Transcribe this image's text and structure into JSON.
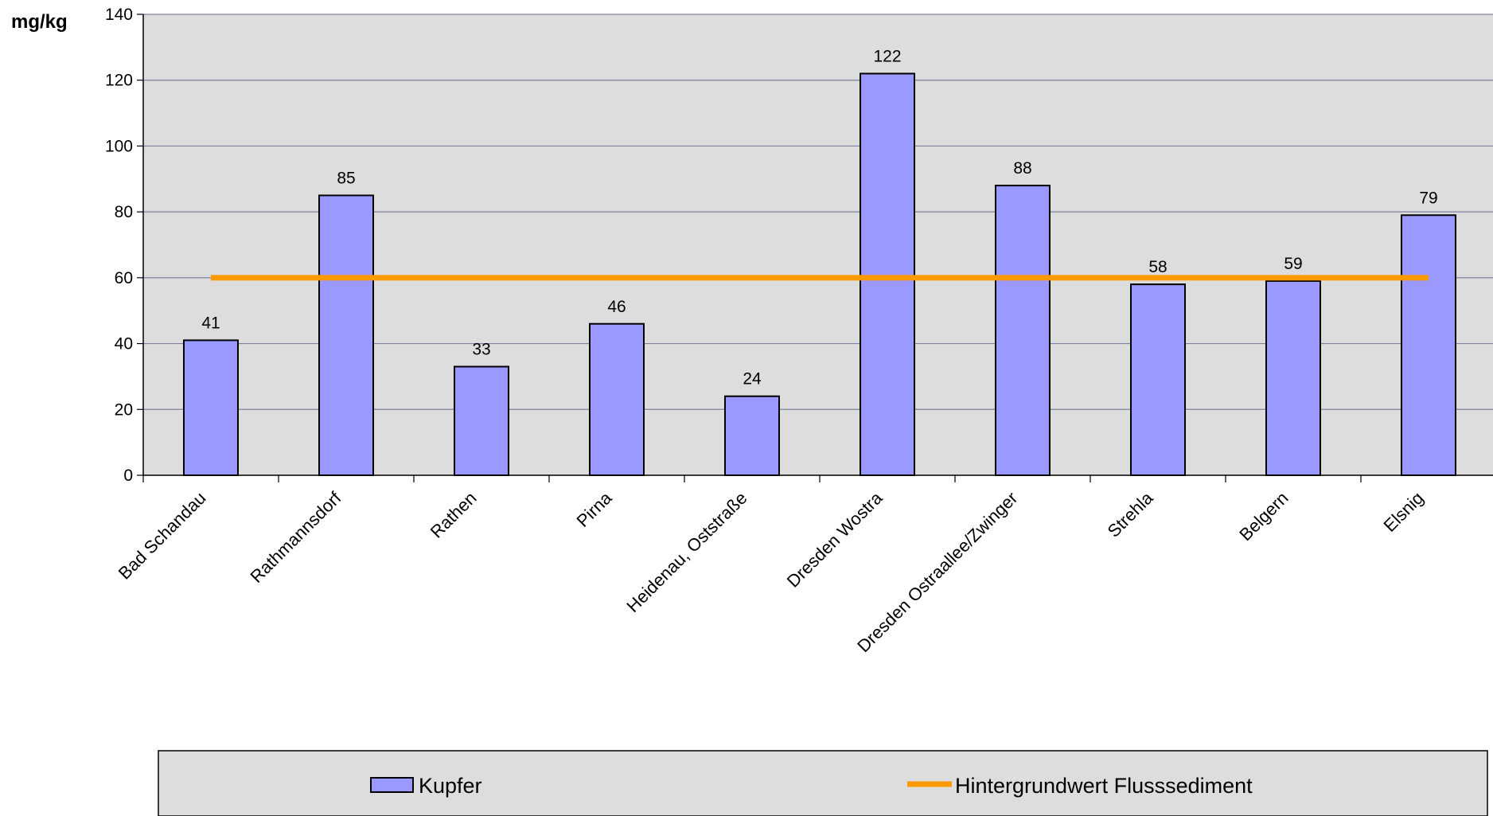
{
  "chart_data": {
    "type": "bar",
    "ylabel": "mg/kg",
    "ylim": [
      0,
      140
    ],
    "yticks": [
      0,
      20,
      40,
      60,
      80,
      100,
      120,
      140
    ],
    "grid": true,
    "categories": [
      "Bad Schandau",
      "Rathmannsdorf",
      "Rathen",
      "Pirna",
      "Heidenau, Oststraße",
      "Dresden Wostra",
      "Dresden Ostraallee/Zwinger",
      "Strehla",
      "Belgern",
      "Elsnig"
    ],
    "series": [
      {
        "name": "Kupfer",
        "type": "bar",
        "color": "#9999ff",
        "values": [
          41,
          85,
          33,
          46,
          24,
          122,
          88,
          58,
          59,
          79
        ]
      },
      {
        "name": "Hintergrundwert Flusssediment",
        "type": "line",
        "color": "#ff9900",
        "values": [
          60,
          60,
          60,
          60,
          60,
          60,
          60,
          60,
          60,
          60
        ]
      }
    ],
    "legend_position": "bottom",
    "plot_background": "#dddddd",
    "gridline_color": "#8080a0"
  }
}
